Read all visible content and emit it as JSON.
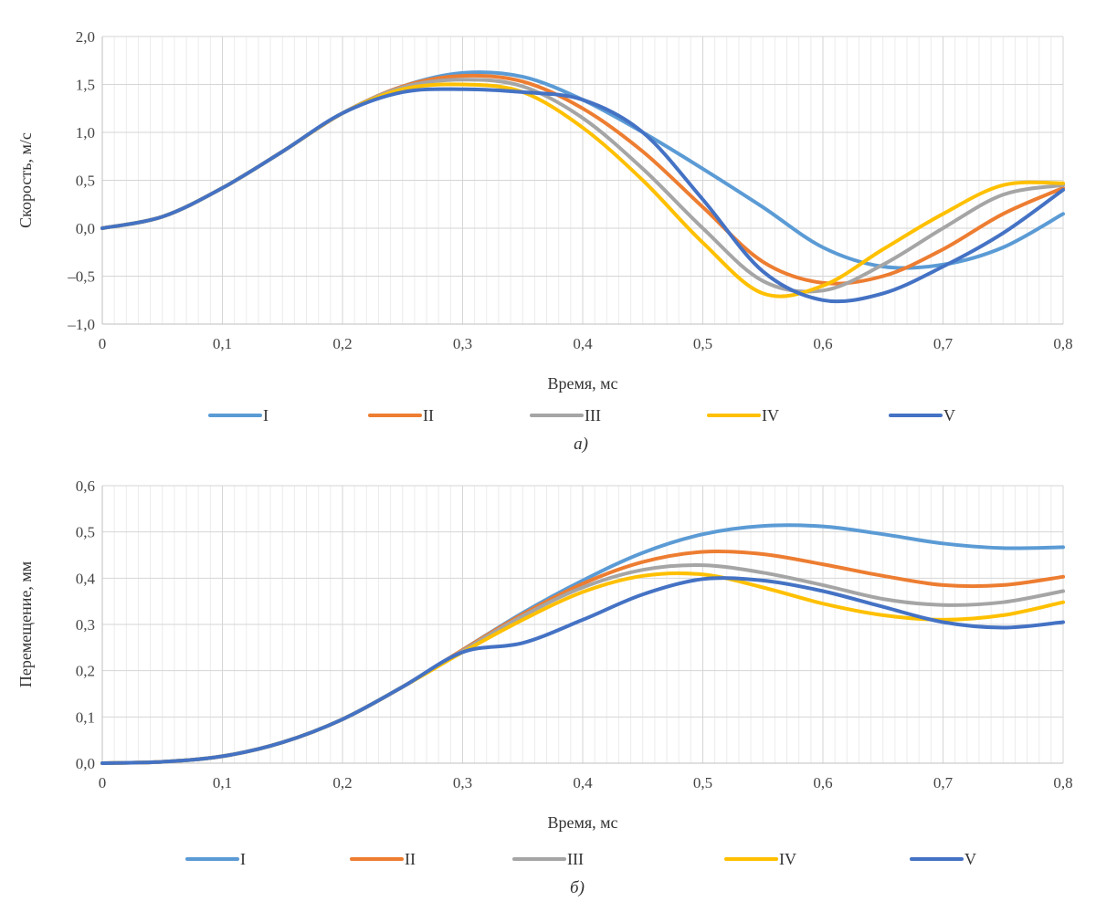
{
  "chart_data": [
    {
      "type": "line",
      "title": "",
      "xlabel": "Время, мс",
      "ylabel": "Скорость, м/с",
      "caption": "а)",
      "xlim": [
        0,
        0.8
      ],
      "ylim": [
        -1.0,
        2.0
      ],
      "x_ticks": [
        "0",
        "0,1",
        "0,2",
        "0,3",
        "0,4",
        "0,5",
        "0,6",
        "0,7",
        "0,8"
      ],
      "y_ticks": [
        "–1,0",
        "–0,5",
        "0,0",
        "0,5",
        "1,0",
        "1,5",
        "2,0"
      ],
      "grid": true,
      "legend_position": "bottom",
      "x": [
        0,
        0.05,
        0.1,
        0.15,
        0.2,
        0.25,
        0.3,
        0.35,
        0.4,
        0.45,
        0.5,
        0.55,
        0.6,
        0.65,
        0.7,
        0.75,
        0.8
      ],
      "series": [
        {
          "name": "I",
          "color": "#5B9BD5",
          "values": [
            0,
            0.12,
            0.42,
            0.8,
            1.2,
            1.48,
            1.62,
            1.58,
            1.34,
            1.0,
            0.62,
            0.22,
            -0.2,
            -0.4,
            -0.38,
            -0.2,
            0.15
          ]
        },
        {
          "name": "II",
          "color": "#ED7D31",
          "values": [
            0,
            0.12,
            0.42,
            0.8,
            1.2,
            1.48,
            1.59,
            1.53,
            1.25,
            0.8,
            0.22,
            -0.35,
            -0.57,
            -0.5,
            -0.22,
            0.15,
            0.42
          ]
        },
        {
          "name": "III",
          "color": "#A5A5A5",
          "values": [
            0,
            0.12,
            0.42,
            0.8,
            1.2,
            1.47,
            1.55,
            1.48,
            1.15,
            0.62,
            0.0,
            -0.55,
            -0.65,
            -0.38,
            0.0,
            0.35,
            0.45
          ]
        },
        {
          "name": "IV",
          "color": "#FFC000",
          "values": [
            0,
            0.12,
            0.42,
            0.8,
            1.2,
            1.45,
            1.5,
            1.42,
            1.05,
            0.5,
            -0.15,
            -0.68,
            -0.6,
            -0.22,
            0.15,
            0.45,
            0.47
          ]
        },
        {
          "name": "V",
          "color": "#4472C4",
          "values": [
            0,
            0.12,
            0.42,
            0.8,
            1.2,
            1.42,
            1.45,
            1.42,
            1.34,
            1.0,
            0.3,
            -0.45,
            -0.75,
            -0.68,
            -0.4,
            -0.05,
            0.4
          ]
        }
      ]
    },
    {
      "type": "line",
      "title": "",
      "xlabel": "Время, мс",
      "ylabel": "Перемещение, мм",
      "caption": "б)",
      "xlim": [
        0,
        0.8
      ],
      "ylim": [
        0,
        0.6
      ],
      "x_ticks": [
        "0",
        "0,1",
        "0,2",
        "0,3",
        "0,4",
        "0,5",
        "0,6",
        "0,7",
        "0,8"
      ],
      "y_ticks": [
        "0,0",
        "0,1",
        "0,2",
        "0,3",
        "0,4",
        "0,5",
        "0,6"
      ],
      "grid": true,
      "legend_position": "bottom",
      "x": [
        0,
        0.05,
        0.1,
        0.15,
        0.2,
        0.25,
        0.3,
        0.35,
        0.4,
        0.45,
        0.5,
        0.55,
        0.6,
        0.65,
        0.7,
        0.75,
        0.8
      ],
      "series": [
        {
          "name": "I",
          "color": "#5B9BD5",
          "values": [
            0,
            0.003,
            0.015,
            0.045,
            0.095,
            0.165,
            0.245,
            0.325,
            0.395,
            0.455,
            0.495,
            0.513,
            0.512,
            0.495,
            0.475,
            0.465,
            0.467
          ]
        },
        {
          "name": "II",
          "color": "#ED7D31",
          "values": [
            0,
            0.003,
            0.015,
            0.045,
            0.095,
            0.165,
            0.245,
            0.322,
            0.388,
            0.435,
            0.457,
            0.452,
            0.43,
            0.405,
            0.385,
            0.385,
            0.403
          ]
        },
        {
          "name": "III",
          "color": "#A5A5A5",
          "values": [
            0,
            0.003,
            0.015,
            0.045,
            0.095,
            0.165,
            0.243,
            0.318,
            0.38,
            0.418,
            0.428,
            0.412,
            0.385,
            0.355,
            0.342,
            0.348,
            0.372
          ]
        },
        {
          "name": "IV",
          "color": "#FFC000",
          "values": [
            0,
            0.003,
            0.015,
            0.045,
            0.095,
            0.165,
            0.24,
            0.31,
            0.37,
            0.405,
            0.408,
            0.38,
            0.345,
            0.32,
            0.31,
            0.32,
            0.348
          ]
        },
        {
          "name": "V",
          "color": "#4472C4",
          "values": [
            0,
            0.003,
            0.015,
            0.045,
            0.095,
            0.165,
            0.24,
            0.26,
            0.31,
            0.365,
            0.398,
            0.395,
            0.372,
            0.338,
            0.305,
            0.293,
            0.305
          ]
        }
      ]
    }
  ]
}
